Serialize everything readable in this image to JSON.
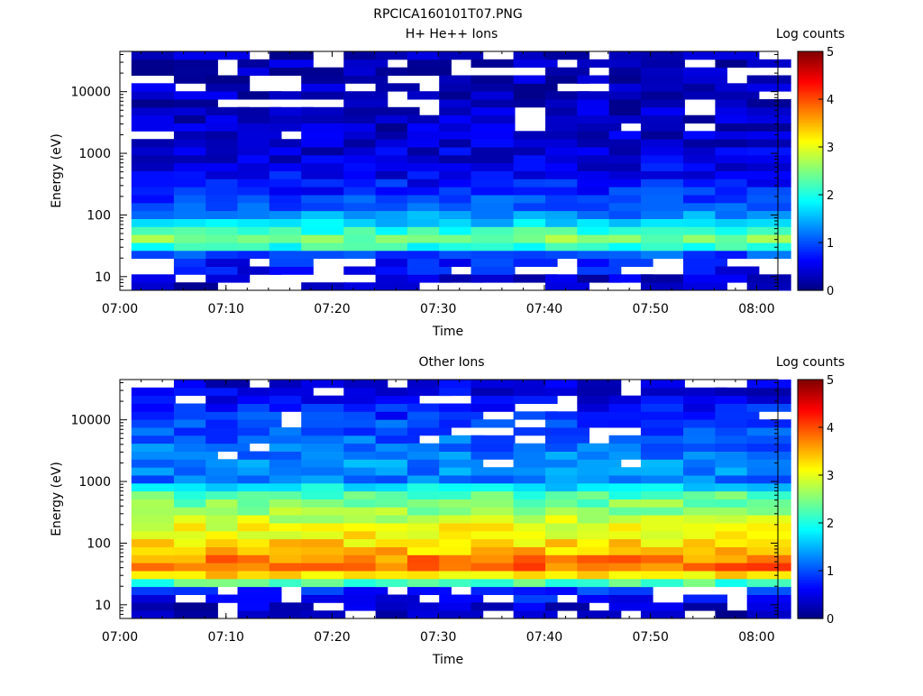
{
  "page_title": "RPCICA160101T07.PNG",
  "chart_data": [
    {
      "type": "heatmap",
      "title": "H+ He++ Ions",
      "xlabel": "Time",
      "ylabel": "Energy (eV)",
      "x_ticks": [
        "07:00",
        "07:10",
        "07:20",
        "07:30",
        "07:40",
        "07:50",
        "08:00"
      ],
      "x_range": [
        "07:00",
        "08:02"
      ],
      "y_ticks": [
        "10",
        "100",
        "1000",
        "10000"
      ],
      "y_range": [
        6,
        45000
      ],
      "y_scale": "log",
      "colorbar": {
        "label": "Log counts",
        "ticks": [
          "0",
          "1",
          "2",
          "3",
          "4",
          "5"
        ],
        "range": [
          0,
          5
        ]
      },
      "time_bins": [
        "07:01",
        "07:05",
        "07:08",
        "07:11",
        "07:14",
        "07:17",
        "07:21",
        "07:24",
        "07:27",
        "07:30",
        "07:33",
        "07:37",
        "07:40",
        "07:43",
        "07:46",
        "07:49",
        "07:53",
        "07:56",
        "07:59"
      ],
      "profile": [
        [
          5,
          0.0
        ],
        [
          7,
          0.2
        ],
        [
          9,
          0.4
        ],
        [
          12,
          0.6
        ],
        [
          15,
          0.8
        ],
        [
          20,
          0.6
        ],
        [
          25,
          1.2
        ],
        [
          30,
          2.0
        ],
        [
          36,
          2.4
        ],
        [
          42,
          2.5
        ],
        [
          50,
          2.3
        ],
        [
          60,
          2.0
        ],
        [
          75,
          1.6
        ],
        [
          100,
          1.3
        ],
        [
          140,
          1.1
        ],
        [
          200,
          0.9
        ],
        [
          300,
          0.7
        ],
        [
          500,
          0.55
        ],
        [
          1000,
          0.45
        ],
        [
          3000,
          0.35
        ],
        [
          10000,
          0.3
        ],
        [
          45000,
          0.25
        ]
      ]
    },
    {
      "type": "heatmap",
      "title": "Other Ions",
      "xlabel": "Time",
      "ylabel": "Energy (eV)",
      "x_ticks": [
        "07:00",
        "07:10",
        "07:20",
        "07:30",
        "07:40",
        "07:50",
        "08:00"
      ],
      "x_range": [
        "07:00",
        "08:02"
      ],
      "y_ticks": [
        "10",
        "100",
        "1000",
        "10000"
      ],
      "y_range": [
        6,
        45000
      ],
      "y_scale": "log",
      "colorbar": {
        "label": "Log counts",
        "ticks": [
          "0",
          "1",
          "2",
          "3",
          "4",
          "5"
        ],
        "range": [
          0,
          5
        ]
      },
      "time_bins": [
        "07:01",
        "07:05",
        "07:08",
        "07:11",
        "07:14",
        "07:17",
        "07:21",
        "07:24",
        "07:27",
        "07:30",
        "07:33",
        "07:37",
        "07:40",
        "07:43",
        "07:46",
        "07:49",
        "07:53",
        "07:56",
        "07:59"
      ],
      "profile": [
        [
          5,
          0.0
        ],
        [
          8,
          0.3
        ],
        [
          10,
          0.4
        ],
        [
          12,
          0.6
        ],
        [
          15,
          0.8
        ],
        [
          18,
          0.9
        ],
        [
          20,
          1.6
        ],
        [
          25,
          2.6
        ],
        [
          30,
          3.2
        ],
        [
          36,
          3.6
        ],
        [
          42,
          3.9
        ],
        [
          50,
          3.9
        ],
        [
          60,
          3.6
        ],
        [
          75,
          3.4
        ],
        [
          100,
          3.3
        ],
        [
          150,
          3.1
        ],
        [
          200,
          3.0
        ],
        [
          300,
          2.7
        ],
        [
          500,
          2.4
        ],
        [
          700,
          2.2
        ],
        [
          1000,
          1.2
        ],
        [
          2000,
          1.3
        ],
        [
          3000,
          1.2
        ],
        [
          5000,
          1.1
        ],
        [
          10000,
          0.9
        ],
        [
          20000,
          0.6
        ],
        [
          45000,
          0.4
        ]
      ]
    }
  ]
}
